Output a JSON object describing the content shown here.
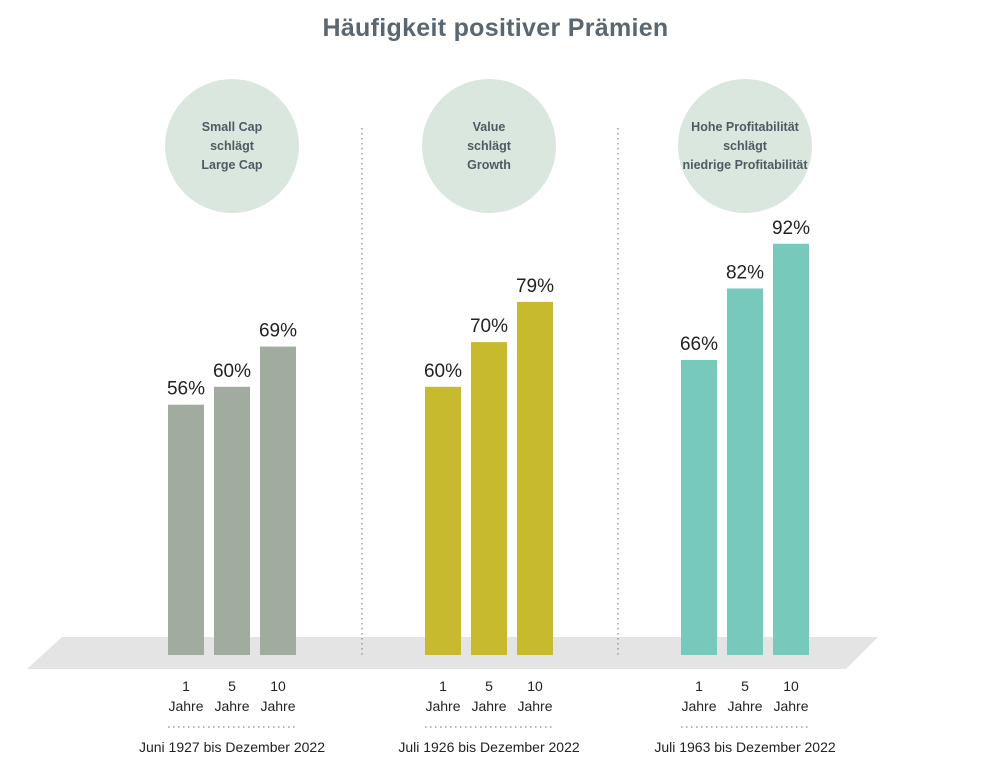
{
  "title": "Häufigkeit positiver Prämien",
  "chart_data": [
    {
      "type": "bar",
      "title": "Small Cap schlägt Large Cap",
      "title_lines": [
        "Small Cap",
        "schlägt",
        "Large Cap"
      ],
      "categories": [
        [
          "1",
          "Jahre"
        ],
        [
          "5",
          "Jahre"
        ],
        [
          "10",
          "Jahre"
        ]
      ],
      "values": [
        56,
        60,
        69
      ],
      "value_labels": [
        "56%",
        "60%",
        "69%"
      ],
      "period": "Juni 1927 bis Dezember 2022",
      "color": "#a1aba0",
      "ylim": [
        0,
        100
      ]
    },
    {
      "type": "bar",
      "title": "Value schlägt Growth",
      "title_lines": [
        "Value",
        "schlägt",
        "Growth"
      ],
      "categories": [
        [
          "1",
          "Jahre"
        ],
        [
          "5",
          "Jahre"
        ],
        [
          "10",
          "Jahre"
        ]
      ],
      "values": [
        60,
        70,
        79
      ],
      "value_labels": [
        "60%",
        "70%",
        "79%"
      ],
      "period": "Juli 1926 bis Dezember 2022",
      "color": "#c8ba2f",
      "ylim": [
        0,
        100
      ]
    },
    {
      "type": "bar",
      "title": "Hohe Profitabilität schlägt niedrige Profitabilität",
      "title_lines": [
        "Hohe Profitabilität",
        "schlägt",
        "niedrige Profitabilität"
      ],
      "categories": [
        [
          "1",
          "Jahre"
        ],
        [
          "5",
          "Jahre"
        ],
        [
          "10",
          "Jahre"
        ]
      ],
      "values": [
        66,
        82,
        92
      ],
      "value_labels": [
        "66%",
        "82%",
        "92%"
      ],
      "period": "Juli 1963 bis Dezember 2022",
      "color": "#77c9bc",
      "ylim": [
        0,
        100
      ]
    }
  ],
  "colors": {
    "title": "#5a6670",
    "bubble": "#d9e7de",
    "floor": "#e4e4e4",
    "divider": "#888888"
  }
}
